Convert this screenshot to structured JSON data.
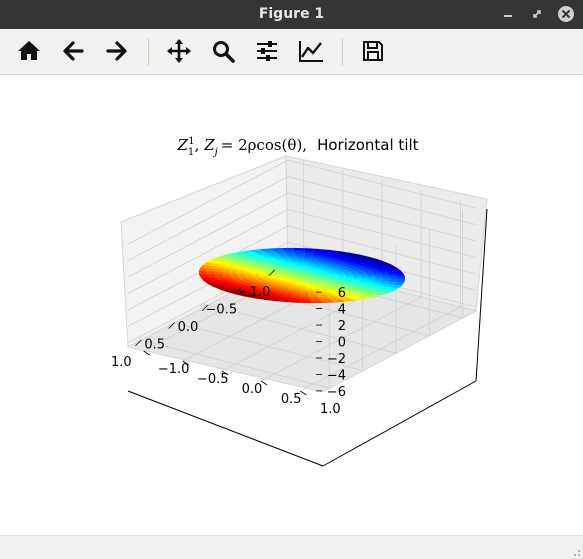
{
  "window": {
    "title": "Figure 1"
  },
  "toolbar": {
    "items": [
      {
        "name": "home-icon"
      },
      {
        "name": "back-arrow-icon"
      },
      {
        "name": "forward-arrow-icon"
      },
      {
        "name": "pan-icon"
      },
      {
        "name": "zoom-icon"
      },
      {
        "name": "configure-subplots-icon"
      },
      {
        "name": "edit-axis-icon"
      },
      {
        "name": "save-icon"
      }
    ]
  },
  "status": {
    "text": ""
  },
  "chart_data": {
    "type": "surface",
    "title": "Z_1^1, Z_j = 2ρcos(θ),   Horizontal tilt",
    "title_parts": {
      "z_main": "Z",
      "z_sub": "1",
      "z_sup": "1",
      "zj_main": "Z",
      "zj_sub": "j",
      "rhs": "= 2ρcos(θ),",
      "suffix": "Horizontal tilt"
    },
    "colormap": "jet",
    "x_ticks": [
      "−1.0",
      "−0.5",
      "0.0",
      "0.5",
      "1.0"
    ],
    "y_ticks": [
      "−1.0",
      "−0.5",
      "0.0",
      "0.5",
      "1.0"
    ],
    "z_ticks": [
      "−6",
      "−4",
      "−2",
      "0",
      "2",
      "4",
      "6"
    ],
    "xlim": [
      -1.2,
      1.2
    ],
    "ylim": [
      -1.2,
      1.2
    ],
    "zlim": [
      -6.5,
      6.5
    ],
    "surface": {
      "function": "z = 2x",
      "domain": "unit disk",
      "z_range": [
        -2,
        2
      ]
    },
    "grid": true
  }
}
